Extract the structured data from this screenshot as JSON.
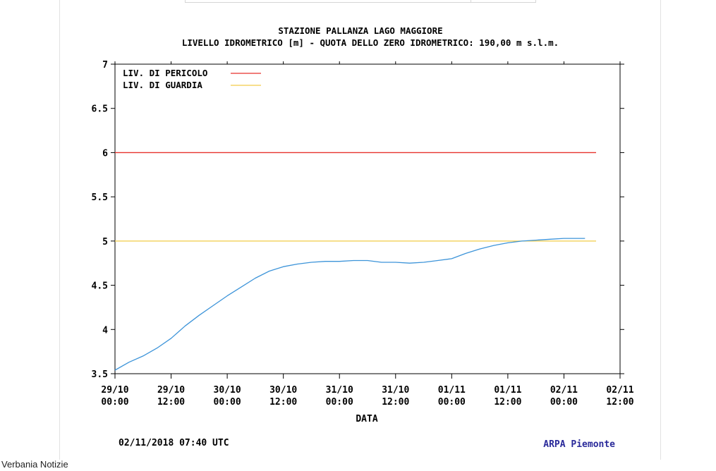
{
  "chart_data": {
    "type": "line",
    "title": "STAZIONE PALLANZA LAGO MAGGIORE",
    "subtitle": "LIVELLO IDROMETRICO [m] - QUOTA DELLO ZERO IDROMETRICO: 190,00  m s.l.m.",
    "xlabel": "DATA",
    "ylabel": "",
    "ylim": [
      3.5,
      7
    ],
    "y_ticks": [
      "3.5",
      "4",
      "4.5",
      "5",
      "5.5",
      "6",
      "6.5",
      "7"
    ],
    "x_ticks": [
      {
        "date": "29/10",
        "time": "00:00"
      },
      {
        "date": "29/10",
        "time": "12:00"
      },
      {
        "date": "30/10",
        "time": "00:00"
      },
      {
        "date": "30/10",
        "time": "12:00"
      },
      {
        "date": "31/10",
        "time": "00:00"
      },
      {
        "date": "31/10",
        "time": "12:00"
      },
      {
        "date": "01/11",
        "time": "00:00"
      },
      {
        "date": "01/11",
        "time": "12:00"
      },
      {
        "date": "02/11",
        "time": "00:00"
      },
      {
        "date": "02/11",
        "time": "12:00"
      }
    ],
    "x_range_hours": [
      0,
      108
    ],
    "legend_position": "top-left",
    "legend": [
      {
        "label": "LIV. DI PERICOLO",
        "color": "#e8322c"
      },
      {
        "label": "LIV. DI GUARDIA",
        "color": "#f2cc47"
      }
    ],
    "thresholds": [
      {
        "label": "LIV. DI PERICOLO",
        "value": 6.0,
        "color": "#e8322c"
      },
      {
        "label": "LIV. DI GUARDIA",
        "value": 5.0,
        "color": "#f2cc47"
      }
    ],
    "series": [
      {
        "color": "#3d94d9",
        "x_hours": [
          0,
          3,
          6,
          9,
          12,
          15,
          18,
          21,
          24,
          27,
          30,
          33,
          36,
          39,
          42,
          45,
          48,
          51,
          54,
          57,
          60,
          63,
          66,
          69,
          72,
          75,
          78,
          81,
          84,
          87,
          90,
          93,
          96,
          99,
          100.5
        ],
        "y": [
          3.54,
          3.63,
          3.7,
          3.79,
          3.9,
          4.04,
          4.16,
          4.27,
          4.38,
          4.48,
          4.58,
          4.66,
          4.71,
          4.74,
          4.76,
          4.77,
          4.77,
          4.78,
          4.78,
          4.76,
          4.76,
          4.75,
          4.76,
          4.78,
          4.8,
          4.86,
          4.91,
          4.95,
          4.98,
          5.0,
          5.01,
          5.02,
          5.03,
          5.03,
          5.03
        ]
      }
    ],
    "grid": false
  },
  "footer": {
    "timestamp": "02/11/2018 07:40 UTC",
    "source": "ARPA Piemonte",
    "source_color": "#2a2a9a"
  },
  "caption": "Verbania Notizie"
}
